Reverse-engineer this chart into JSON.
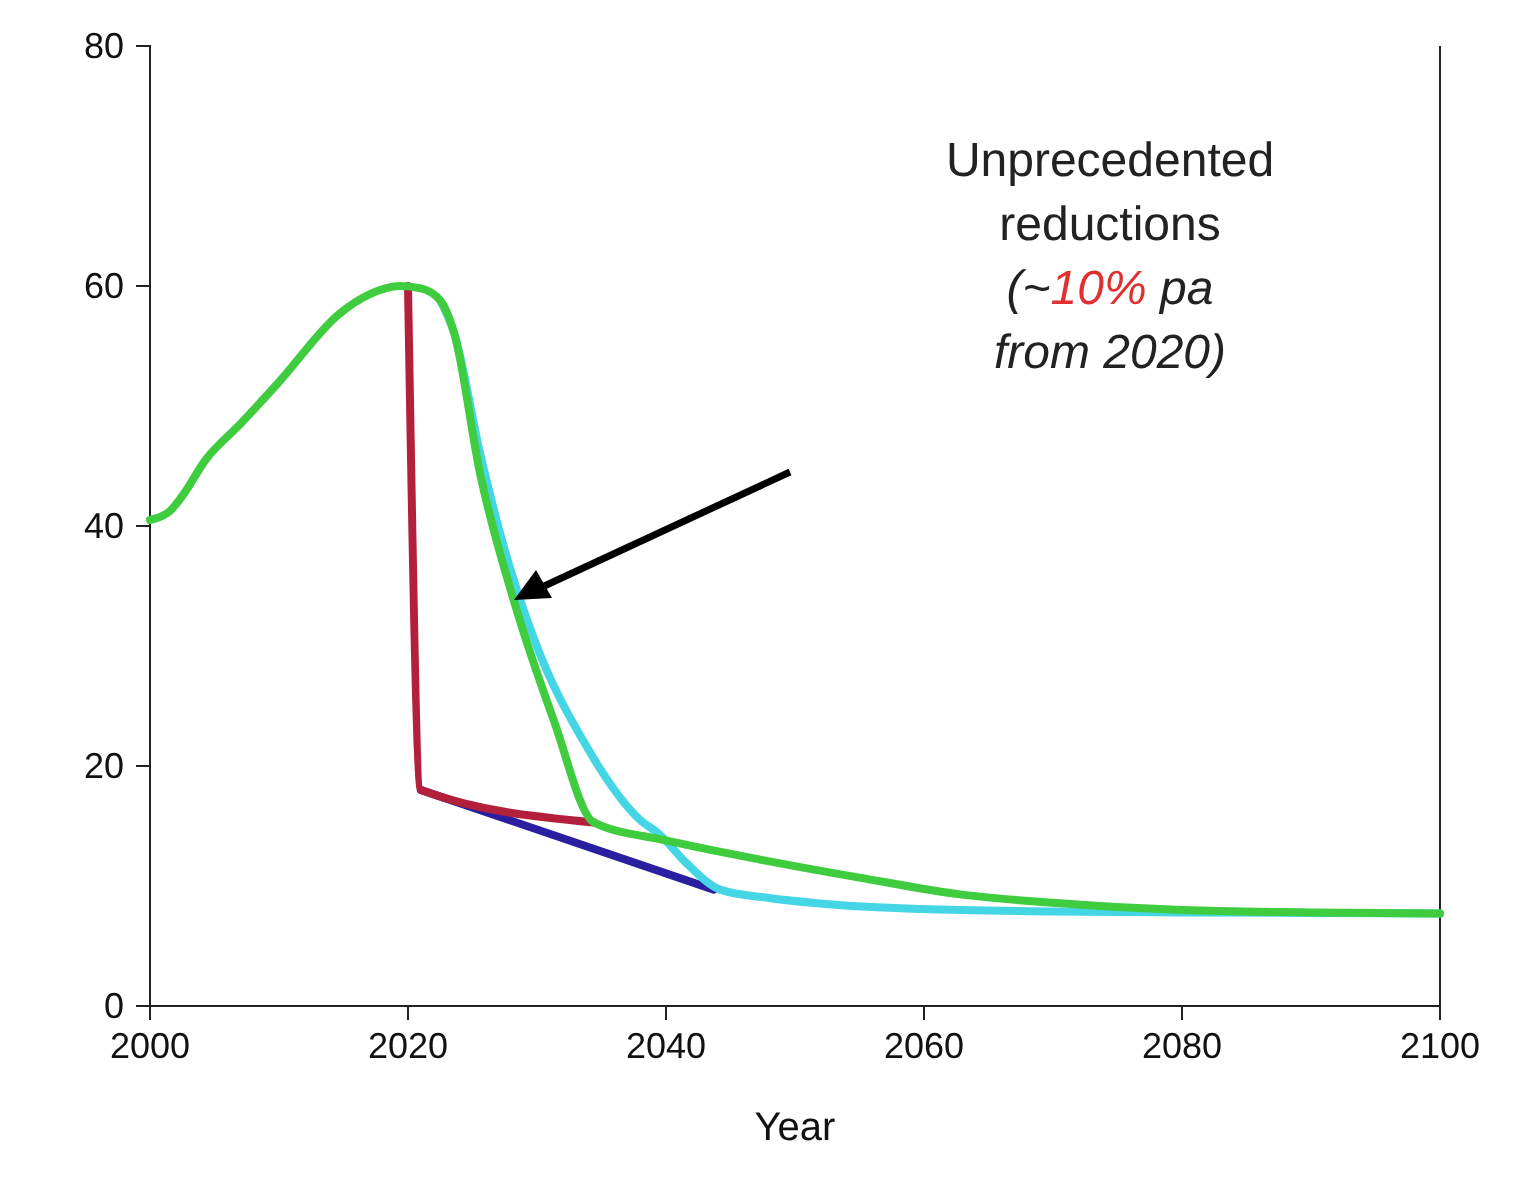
{
  "chart_data": {
    "type": "line",
    "xlabel": "Year",
    "annotations": [
      "Unprecedented",
      "reductions",
      "(~10% pa",
      "from 2020)"
    ],
    "xlim": [
      2000,
      2100
    ],
    "xticks": [
      2000,
      2020,
      2040,
      2060,
      2080,
      2100
    ],
    "ylim": [
      0,
      80
    ],
    "yticks": [
      0,
      20,
      40,
      60,
      80
    ],
    "grid": false,
    "marker": "none",
    "line_style": "solid",
    "series": [
      {
        "color": "#2a1fa0",
        "x": [
          2021,
          2043.7
        ],
        "values": [
          18,
          9.7
        ]
      },
      {
        "color": "#b3203c",
        "x": [
          2020,
          2021,
          2034.4
        ],
        "values": [
          60,
          18,
          15.3
        ]
      },
      {
        "color": "#45d6e6",
        "x": [
          2022.5,
          2023.6,
          2025.6,
          2027.5,
          2029.8,
          2033.8,
          2038,
          2039.5,
          2041.5,
          2044.2,
          2048,
          2052.4,
          2062.8,
          2080,
          2100
        ],
        "values": [
          58.8,
          56,
          46,
          38,
          30.5,
          21.7,
          15.5,
          14.3,
          12,
          9.7,
          9,
          8.5,
          8,
          7.8,
          7.7
        ]
      },
      {
        "color": "#3fcc3f",
        "x": [
          2000,
          2001.5,
          2002.5,
          2004.3,
          2007,
          2010,
          2014.7,
          2017,
          2019.4,
          2021,
          2022.5,
          2023.6,
          2025.6,
          2028.2,
          2031.3,
          2034.4,
          2040,
          2047.3,
          2055,
          2062.8,
          2070,
          2080,
          2090,
          2100
        ],
        "values": [
          40.5,
          41.2,
          42.5,
          45.5,
          48.5,
          52,
          57.7,
          59.3,
          60,
          59.8,
          58.8,
          56,
          44.3,
          33.8,
          23.8,
          15.3,
          13.8,
          12.2,
          10.7,
          9.3,
          8.6,
          8,
          7.8,
          7.7
        ]
      }
    ]
  }
}
